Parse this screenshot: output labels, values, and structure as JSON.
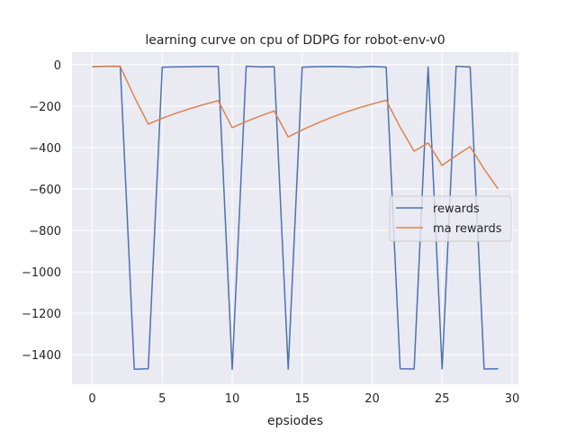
{
  "chart_data": {
    "type": "line",
    "title": "learning curve on cpu of DDPG for robot-env-v0",
    "xlabel": "epsiodes",
    "ylabel": "",
    "xlim": [
      -1.45,
      30.45
    ],
    "ylim": [
      -1543,
      60
    ],
    "xticks": [
      0,
      5,
      10,
      15,
      20,
      25,
      30
    ],
    "yticks": [
      0,
      -200,
      -400,
      -600,
      -800,
      -1000,
      -1200,
      -1400
    ],
    "x": [
      0,
      1,
      2,
      3,
      4,
      5,
      6,
      7,
      8,
      9,
      10,
      11,
      12,
      13,
      14,
      15,
      16,
      17,
      18,
      19,
      20,
      21,
      22,
      23,
      24,
      25,
      26,
      27,
      28,
      29
    ],
    "series": [
      {
        "name": "rewards",
        "color": "#4c72b0",
        "values": [
          -10,
          -8,
          -8,
          -1470,
          -1468,
          -12,
          -11,
          -10,
          -9,
          -9,
          -1471,
          -8,
          -11,
          -10,
          -1469,
          -12,
          -10,
          -9,
          -10,
          -12,
          -9,
          -12,
          -1468,
          -1469,
          -11,
          -1468,
          -8,
          -11,
          -1469,
          -1468
        ]
      },
      {
        "name": "ma rewards",
        "color": "#dd8452",
        "values": [
          -10,
          -9,
          -9,
          -155,
          -287,
          -259,
          -234,
          -212,
          -192,
          -174,
          -304,
          -275,
          -248,
          -224,
          -349,
          -315,
          -285,
          -257,
          -232,
          -210,
          -190,
          -172,
          -302,
          -418,
          -378,
          -487,
          -439,
          -396,
          -504,
          -600
        ]
      }
    ],
    "grid": true,
    "legend": "center-right"
  }
}
